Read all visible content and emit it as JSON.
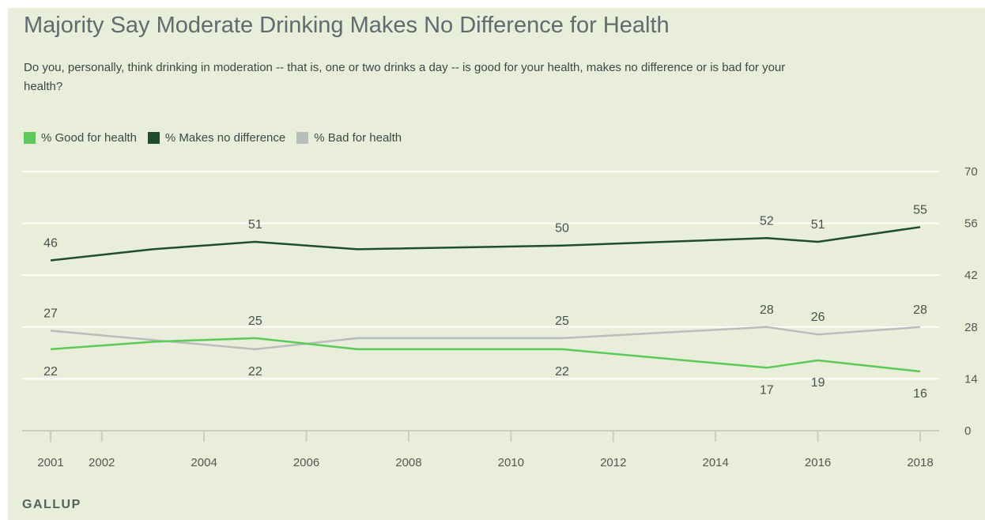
{
  "title": "Majority Say Moderate Drinking Makes No Difference for Health",
  "subtitle": "Do you, personally, think drinking in moderation -- that is, one or two drinks a day -- is good for your health, makes no difference or is bad for your health?",
  "source": "GALLUP",
  "colors": {
    "background": "#e9eedb",
    "good": "#5cc95a",
    "no_difference": "#1f4d2c",
    "bad": "#b9bcbc",
    "gridline": "#ffffff",
    "axis_text": "#555555"
  },
  "chart_data": {
    "type": "line",
    "x": [
      2001,
      2002,
      2003,
      2004,
      2005,
      2006,
      2007,
      2008,
      2009,
      2010,
      2011,
      2012,
      2013,
      2014,
      2015,
      2016,
      2017,
      2018
    ],
    "x_ticks": [
      2001,
      2002,
      2004,
      2006,
      2008,
      2010,
      2012,
      2014,
      2016,
      2018
    ],
    "x_tick_labels": [
      "2001",
      "2002",
      "2004",
      "2006",
      "2008",
      "2010",
      "2012",
      "2014",
      "2016",
      "2018"
    ],
    "xlim": [
      2001,
      2018
    ],
    "y_ticks": [
      0,
      14,
      28,
      42,
      56,
      70
    ],
    "y_tick_labels": [
      "0",
      "14",
      "28",
      "42",
      "56",
      "70"
    ],
    "ylim": [
      0,
      70
    ],
    "grid": true,
    "legend_position": "top-left",
    "y_axis_side": "right",
    "series": [
      {
        "name": "% Good for health",
        "color": "#5cc95a",
        "points": [
          [
            2001,
            22
          ],
          [
            2002,
            23
          ],
          [
            2003,
            24
          ],
          [
            2005,
            25
          ],
          [
            2007,
            22
          ],
          [
            2011,
            22
          ],
          [
            2015,
            17
          ],
          [
            2016,
            19
          ],
          [
            2018,
            16
          ]
        ],
        "labels": [
          {
            "x": 2001,
            "y": 22,
            "text": "22",
            "pos": "below"
          },
          {
            "x": 2005,
            "y": 25,
            "text": "25",
            "pos": "above"
          },
          {
            "x": 2011,
            "y": 22,
            "text": "22",
            "pos": "below"
          },
          {
            "x": 2015,
            "y": 17,
            "text": "17",
            "pos": "below"
          },
          {
            "x": 2016,
            "y": 19,
            "text": "19",
            "pos": "below"
          },
          {
            "x": 2018,
            "y": 16,
            "text": "16",
            "pos": "below"
          }
        ]
      },
      {
        "name": "% Makes no difference",
        "color": "#1f4d2c",
        "points": [
          [
            2001,
            46
          ],
          [
            2003,
            49
          ],
          [
            2005,
            51
          ],
          [
            2007,
            49
          ],
          [
            2011,
            50
          ],
          [
            2015,
            52
          ],
          [
            2016,
            51
          ],
          [
            2018,
            55
          ]
        ],
        "labels": [
          {
            "x": 2001,
            "y": 46,
            "text": "46",
            "pos": "above"
          },
          {
            "x": 2005,
            "y": 51,
            "text": "51",
            "pos": "above"
          },
          {
            "x": 2011,
            "y": 50,
            "text": "50",
            "pos": "above"
          },
          {
            "x": 2015,
            "y": 52,
            "text": "52",
            "pos": "above"
          },
          {
            "x": 2016,
            "y": 51,
            "text": "51",
            "pos": "above"
          },
          {
            "x": 2018,
            "y": 55,
            "text": "55",
            "pos": "above"
          }
        ]
      },
      {
        "name": "% Bad for health",
        "color": "#b9bcbc",
        "points": [
          [
            2001,
            27
          ],
          [
            2005,
            22
          ],
          [
            2007,
            25
          ],
          [
            2011,
            25
          ],
          [
            2015,
            28
          ],
          [
            2016,
            26
          ],
          [
            2018,
            28
          ]
        ],
        "labels": [
          {
            "x": 2001,
            "y": 27,
            "text": "27",
            "pos": "above"
          },
          {
            "x": 2005,
            "y": 22,
            "text": "22",
            "pos": "below"
          },
          {
            "x": 2011,
            "y": 25,
            "text": "25",
            "pos": "above"
          },
          {
            "x": 2015,
            "y": 28,
            "text": "28",
            "pos": "above"
          },
          {
            "x": 2016,
            "y": 26,
            "text": "26",
            "pos": "above"
          },
          {
            "x": 2018,
            "y": 28,
            "text": "28",
            "pos": "above"
          }
        ]
      }
    ]
  }
}
